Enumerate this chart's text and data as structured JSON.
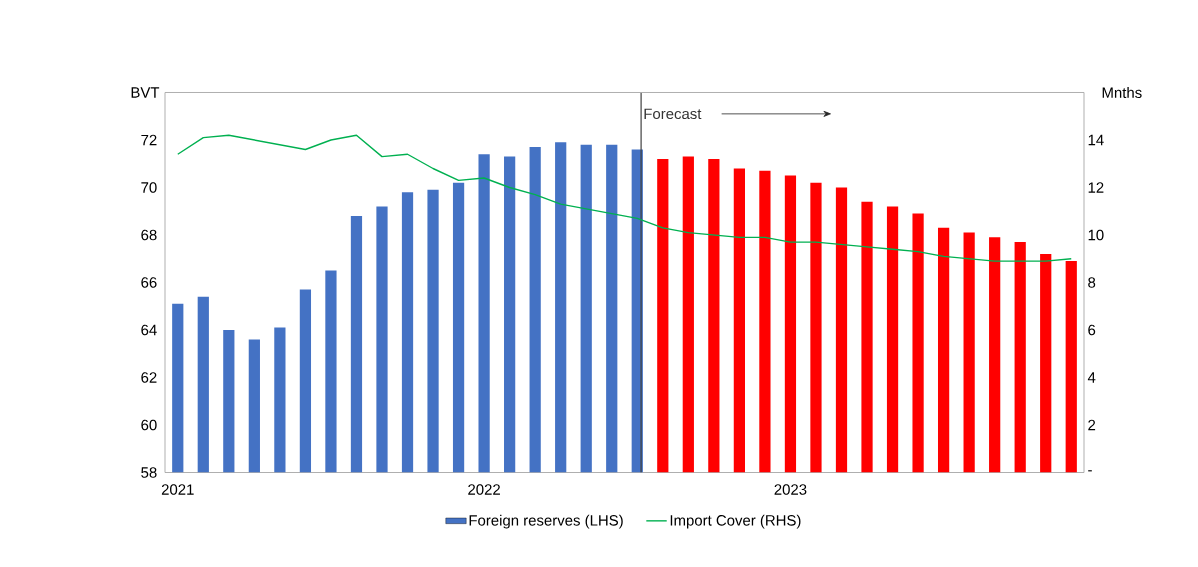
{
  "chart_data": {
    "type": "bar",
    "categories": [
      "2021",
      null,
      null,
      null,
      null,
      null,
      null,
      null,
      null,
      null,
      null,
      null,
      "2022",
      null,
      null,
      null,
      null,
      null,
      null,
      null,
      null,
      null,
      null,
      null,
      "2023",
      null,
      null,
      null,
      null,
      null,
      null,
      null,
      null,
      null,
      null,
      null
    ],
    "series": [
      {
        "name": "Foreign reserves (LHS)",
        "color": "#4472c4",
        "colors": [
          "#4472c4",
          "#4472c4",
          "#4472c4",
          "#4472c4",
          "#4472c4",
          "#4472c4",
          "#4472c4",
          "#4472c4",
          "#4472c4",
          "#4472c4",
          "#4472c4",
          "#4472c4",
          "#4472c4",
          "#4472c4",
          "#4472c4",
          "#4472c4",
          "#4472c4",
          "#4472c4",
          "#4472c4",
          "#ff0000",
          "#ff0000",
          "#ff0000",
          "#ff0000",
          "#ff0000",
          "#ff0000",
          "#ff0000",
          "#ff0000",
          "#ff0000",
          "#ff0000",
          "#ff0000",
          "#ff0000",
          "#ff0000",
          "#ff0000",
          "#ff0000",
          "#ff0000",
          "#ff0000"
        ],
        "values": [
          65.1,
          65.4,
          64.0,
          63.6,
          64.1,
          65.7,
          66.5,
          68.8,
          69.2,
          69.8,
          69.9,
          70.2,
          71.4,
          71.3,
          71.7,
          71.9,
          71.8,
          71.8,
          71.6,
          71.2,
          71.3,
          71.2,
          70.8,
          70.7,
          70.5,
          70.2,
          70.0,
          69.4,
          69.2,
          68.9,
          68.3,
          68.1,
          67.9,
          67.7,
          67.2,
          66.9
        ]
      },
      {
        "name": "Import Cover (RHS)",
        "type": "line",
        "axis": "y2",
        "color": "#00b050",
        "values": [
          13.4,
          14.1,
          14.2,
          14.0,
          13.8,
          13.6,
          14.0,
          14.2,
          13.3,
          13.4,
          12.8,
          12.3,
          12.4,
          12.0,
          11.7,
          11.3,
          11.1,
          10.9,
          10.7,
          10.3,
          10.1,
          10.0,
          9.9,
          9.9,
          9.7,
          9.7,
          9.6,
          9.5,
          9.4,
          9.3,
          9.1,
          9.0,
          8.9,
          8.9,
          8.9,
          9.0
        ]
      }
    ],
    "ylabel": "BVT",
    "y2label": "Mnths",
    "ylim": [
      58,
      74
    ],
    "yticks": [
      58,
      60,
      62,
      64,
      66,
      68,
      70,
      72
    ],
    "y2lim": [
      0,
      16
    ],
    "y2ticks": [
      {
        "value": 0,
        "label": "-"
      },
      2,
      4,
      6,
      8,
      10,
      12,
      14
    ],
    "legend": "bottom",
    "marker": "none",
    "annotations": [
      "Forecast"
    ]
  }
}
